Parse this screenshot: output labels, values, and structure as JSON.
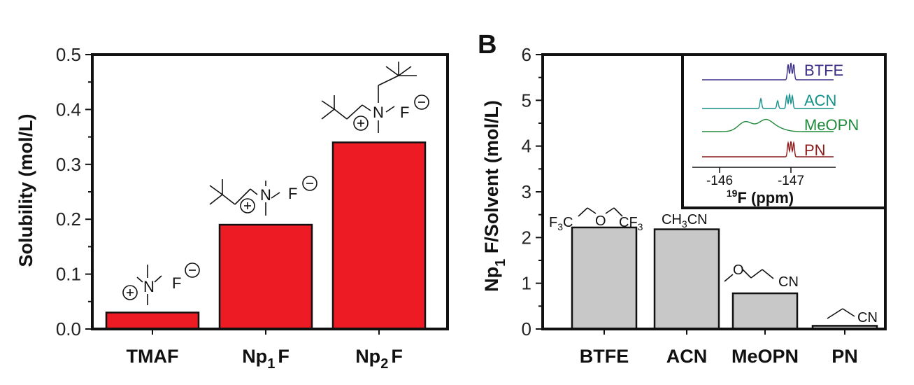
{
  "chart_data": [
    {
      "type": "bar",
      "panel": "",
      "categories": [
        "TMAF",
        "Np1F",
        "Np2F"
      ],
      "category_labels": [
        {
          "main": "TMAF",
          "sub": "",
          "suffix": ""
        },
        {
          "main": "Np",
          "sub": "1",
          "suffix": "F"
        },
        {
          "main": "Np",
          "sub": "2",
          "suffix": "F"
        }
      ],
      "values": [
        0.03,
        0.19,
        0.34
      ],
      "ylabel": "Solubility (mol/L)",
      "xlabel": "",
      "ylim": [
        0,
        0.5
      ],
      "yticks": [
        "0.0",
        "0.1",
        "0.2",
        "0.3",
        "0.4",
        "0.5"
      ],
      "bar_color": "#ed1c24",
      "grid": false,
      "structure_labels": {
        "nitrogen": "N",
        "fluorine": "F",
        "plus": "+",
        "minus": "−"
      }
    },
    {
      "type": "bar",
      "panel": "B",
      "categories": [
        "BTFE",
        "ACN",
        "MeOPN",
        "PN"
      ],
      "values": [
        2.22,
        2.18,
        0.78,
        0.07
      ],
      "ylabel_parts": {
        "pre": "Np",
        "sub": "1",
        "post": " F/Solvent (mol/L)"
      },
      "xlabel": "",
      "ylim": [
        0,
        6
      ],
      "yticks": [
        "0",
        "1",
        "2",
        "3",
        "4",
        "5",
        "6"
      ],
      "bar_color": "#c8c8c8",
      "grid": false,
      "structure_labels": {
        "btfe": {
          "left": "F",
          "left_sub": "3",
          "left_c": "C",
          "o": "O",
          "right": "CF",
          "right_sub": "3"
        },
        "acn": {
          "pre": "CH",
          "sub": "3",
          "post": "CN"
        },
        "meopn": {
          "o": "O",
          "cn": "CN"
        },
        "pn": {
          "cn": "CN"
        }
      },
      "inset": {
        "series": [
          {
            "name": "BTFE",
            "color": "#3b2f86"
          },
          {
            "name": "ACN",
            "color": "#13918a"
          },
          {
            "name": "MeOPN",
            "color": "#1f8a3a"
          },
          {
            "name": "PN",
            "color": "#8b1a1a"
          }
        ],
        "xticks": [
          "-146",
          "-147"
        ],
        "xlabel_parts": {
          "sup": "19",
          "main": "F (ppm)"
        }
      }
    }
  ]
}
